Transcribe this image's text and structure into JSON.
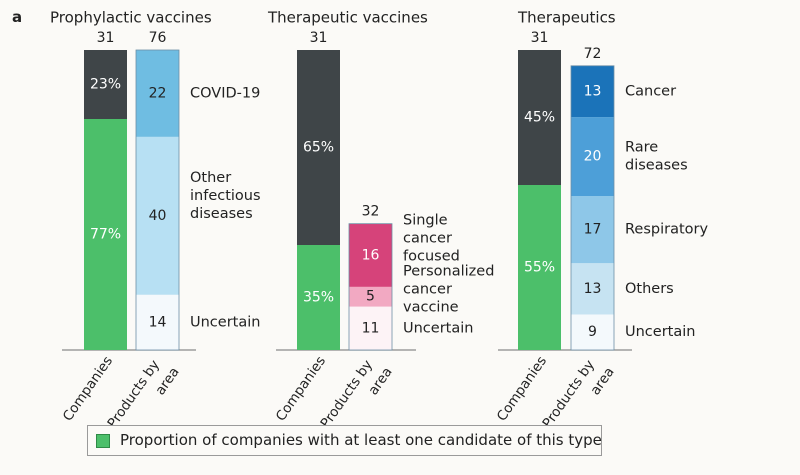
{
  "panel_letter": "a",
  "legend": {
    "label": "Proportion of companies with at least one candidate of this type",
    "color": "#4cbf6a"
  },
  "chart_data": [
    {
      "type": "bar",
      "title": "Prophylactic vaccines",
      "categories": [
        "Companies",
        "Products by area"
      ],
      "companies": {
        "total": 31,
        "segments": [
          {
            "label": "77%",
            "value": 77,
            "color": "#4cbf6a"
          },
          {
            "label": "23%",
            "value": 23,
            "color": "#3f4548"
          }
        ]
      },
      "products": {
        "total": 76,
        "segments": [
          {
            "name": "Uncertain",
            "value": 14,
            "color": "#f4f9fc"
          },
          {
            "name": "Other infectious diseases",
            "value": 40,
            "color": "#b7e0f3"
          },
          {
            "name": "COVID-19",
            "value": 22,
            "color": "#6fbde2"
          }
        ]
      }
    },
    {
      "type": "bar",
      "title": "Therapeutic vaccines",
      "categories": [
        "Companies",
        "Products by area"
      ],
      "companies": {
        "total": 31,
        "segments": [
          {
            "label": "35%",
            "value": 35,
            "color": "#4cbf6a"
          },
          {
            "label": "65%",
            "value": 65,
            "color": "#3f4548"
          }
        ]
      },
      "products": {
        "total": 32,
        "segments": [
          {
            "name": "Uncertain",
            "value": 11,
            "color": "#fdf3f6"
          },
          {
            "name": "Personalized cancer vaccine",
            "value": 5,
            "color": "#f2a9c2"
          },
          {
            "name": "Single cancer focused",
            "value": 16,
            "color": "#d6437a"
          }
        ]
      }
    },
    {
      "type": "bar",
      "title": "Therapeutics",
      "categories": [
        "Companies",
        "Products by area"
      ],
      "companies": {
        "total": 31,
        "segments": [
          {
            "label": "55%",
            "value": 55,
            "color": "#4cbf6a"
          },
          {
            "label": "45%",
            "value": 45,
            "color": "#3f4548"
          }
        ]
      },
      "products": {
        "total": 72,
        "segments": [
          {
            "name": "Uncertain",
            "value": 9,
            "color": "#f4f9fc"
          },
          {
            "name": "Others",
            "value": 13,
            "color": "#c6e3f2"
          },
          {
            "name": "Respiratory",
            "value": 17,
            "color": "#8ec7e8"
          },
          {
            "name": "Rare diseases",
            "value": 20,
            "color": "#4d9fd8"
          },
          {
            "name": "Cancer",
            "value": 13,
            "color": "#1b73b9"
          }
        ]
      }
    }
  ]
}
